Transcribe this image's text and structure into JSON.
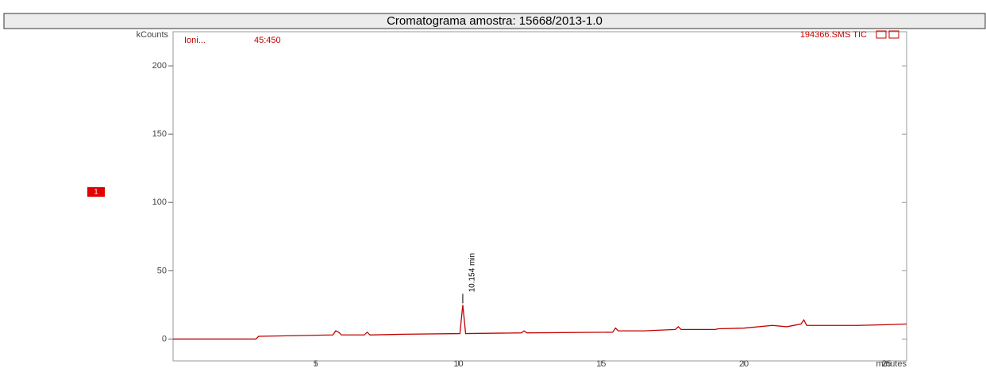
{
  "chart_data": {
    "type": "line",
    "title": "Cromatograma amostra: 15668/2013-1.0",
    "y_label": "kCounts",
    "x_label": "minutes",
    "ion_label": "Ioni...",
    "mass_range": "45:450",
    "file_label": "194366.SMS TIC",
    "marker_label": "1",
    "peak_annotation": "10.154 min",
    "x": [
      0,
      2.9,
      3.0,
      5.6,
      5.7,
      5.8,
      5.9,
      6.7,
      6.8,
      6.9,
      8,
      10.05,
      10.15,
      10.25,
      12.2,
      12.3,
      12.4,
      15.4,
      15.5,
      15.6,
      16.5,
      17.6,
      17.7,
      17.8,
      18.9,
      19.0,
      19.1,
      20,
      21,
      21.5,
      22,
      22.1,
      22.2,
      23,
      24,
      25,
      25.7
    ],
    "series": [
      {
        "name": "194366.SMS TIC",
        "color": "#c00000",
        "values": [
          0,
          0,
          2,
          3,
          6,
          5,
          3,
          3,
          5,
          3,
          3.5,
          4,
          25,
          4,
          4.5,
          6,
          4.5,
          5,
          8,
          6,
          6,
          7,
          9,
          7,
          7,
          7,
          7.5,
          8,
          10,
          9,
          11,
          14,
          10,
          10,
          10,
          10.5,
          11
        ]
      }
    ],
    "xlim": [
      0,
      25.7
    ],
    "ylim": [
      -16,
      225
    ],
    "xticks": [
      5,
      10,
      15,
      20,
      25
    ],
    "yticks": [
      0,
      50,
      100,
      150,
      200
    ]
  }
}
